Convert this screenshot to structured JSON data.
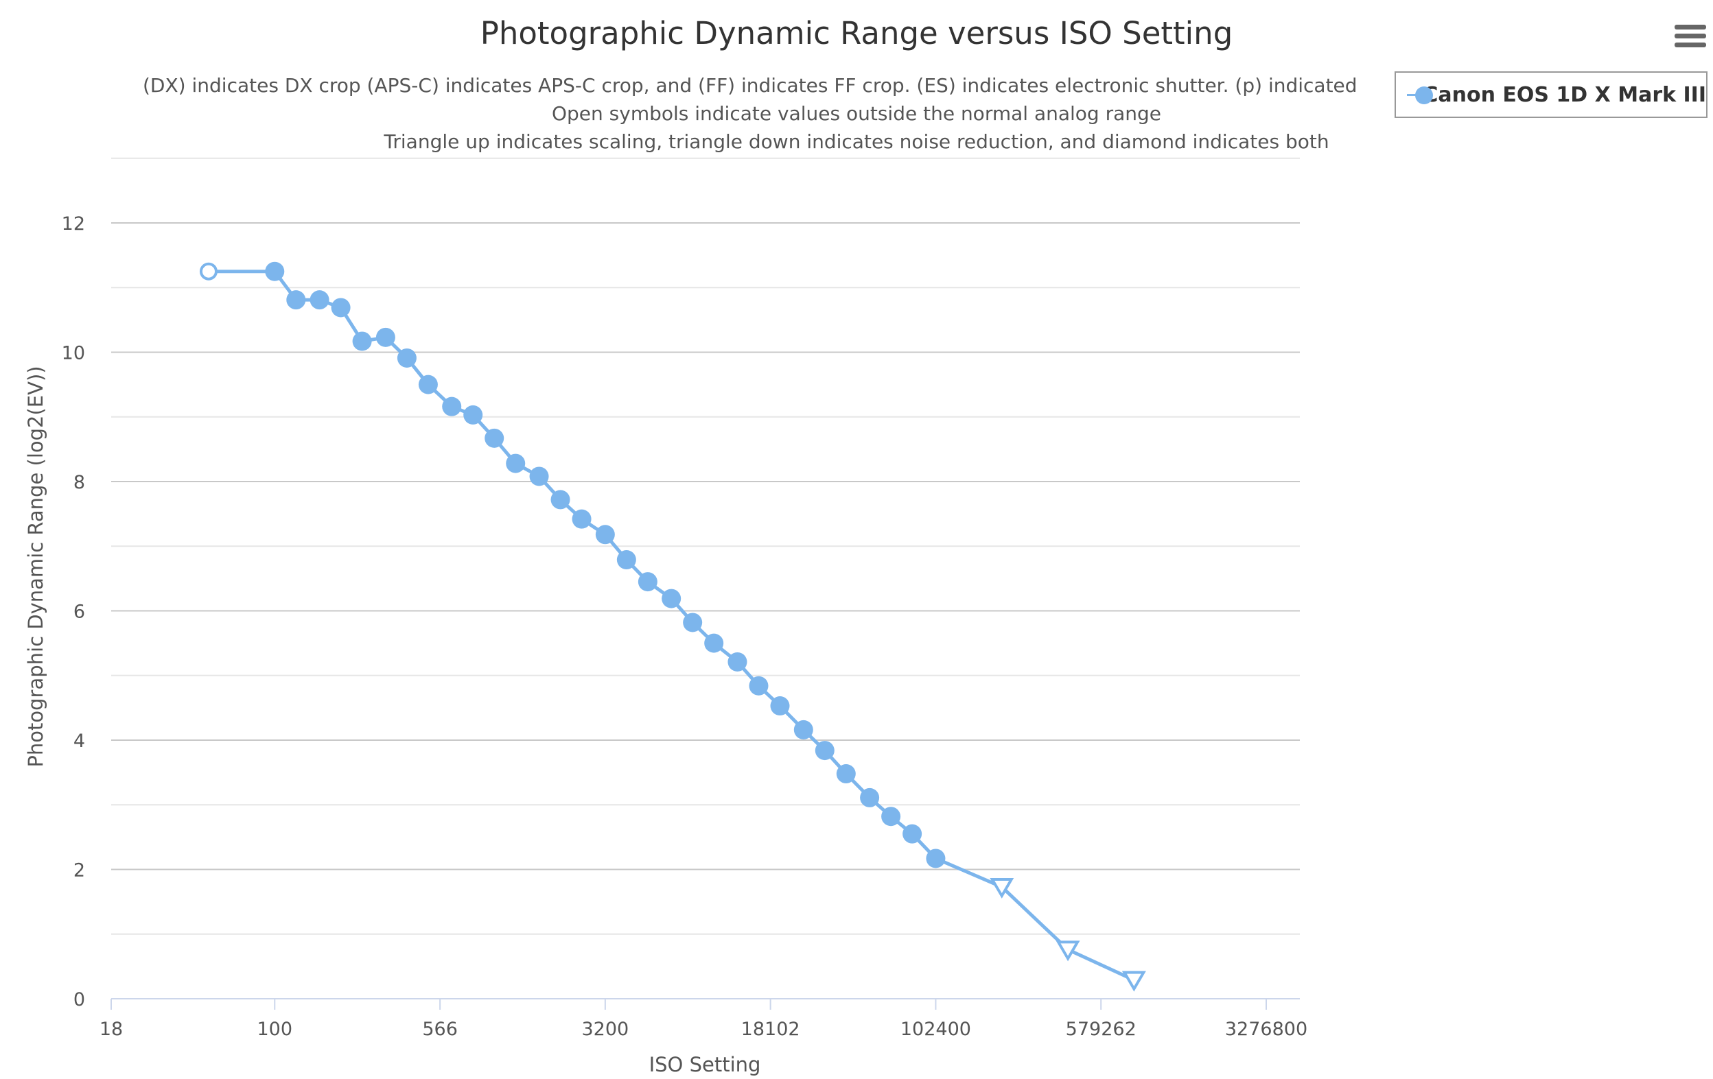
{
  "chart_data": {
    "type": "line",
    "title": "Photographic Dynamic Range versus ISO Setting",
    "subtitles": [
      "(DX) indicates DX crop (APS-C) indicates APS-C crop, and (FF) indicates FF crop. (ES) indicates electronic shutter. (p) indicated",
      "Open symbols indicate values outside the normal analog range",
      "Triangle up indicates scaling, triangle down indicates noise reduction, and diamond indicates both"
    ],
    "xlabel": "ISO Setting",
    "ylabel": "Photographic Dynamic Range (log2(EV))",
    "xscale": "log",
    "xlim": [
      18,
      3276800
    ],
    "ylim": [
      0,
      13
    ],
    "xticks": [
      18,
      100,
      566,
      3200,
      18102,
      102400,
      579262,
      3276800
    ],
    "xtick_labels": [
      "18",
      "100",
      "566",
      "3200",
      "18102",
      "102400",
      "579262",
      "3276800"
    ],
    "yticks": [
      0,
      2,
      4,
      6,
      8,
      10,
      12
    ],
    "ytick_labels": [
      "0",
      "2",
      "4",
      "6",
      "8",
      "10",
      "12"
    ],
    "grid": true,
    "legend_position": "top-right",
    "series": [
      {
        "name": "Canon EOS 1D X Mark III",
        "color": "#7cb5ec",
        "x": [
          50,
          100,
          125,
          160,
          200,
          250,
          320,
          400,
          500,
          640,
          800,
          1000,
          1250,
          1600,
          2000,
          2500,
          3200,
          4000,
          5000,
          6400,
          8000,
          10000,
          12800,
          16000,
          20000,
          25600,
          32000,
          40000,
          51200,
          64000,
          80000,
          102400,
          204800,
          409600,
          819200
        ],
        "y": [
          11.25,
          11.25,
          10.81,
          10.81,
          10.69,
          10.17,
          10.23,
          9.91,
          9.5,
          9.16,
          9.03,
          8.67,
          8.28,
          8.08,
          7.72,
          7.42,
          7.18,
          6.79,
          6.45,
          6.19,
          5.82,
          5.5,
          5.21,
          4.84,
          4.53,
          4.16,
          3.84,
          3.48,
          3.11,
          2.82,
          2.55,
          2.17,
          1.73,
          0.76,
          0.29
        ],
        "markers": [
          "open-circle",
          "circle",
          "circle",
          "circle",
          "circle",
          "circle",
          "circle",
          "circle",
          "circle",
          "circle",
          "circle",
          "circle",
          "circle",
          "circle",
          "circle",
          "circle",
          "circle",
          "circle",
          "circle",
          "circle",
          "circle",
          "circle",
          "circle",
          "circle",
          "circle",
          "circle",
          "circle",
          "circle",
          "circle",
          "circle",
          "circle",
          "circle",
          "open-triangle-down",
          "open-triangle-down",
          "open-triangle-down"
        ]
      }
    ]
  },
  "menu": {
    "icon": "hamburger-icon"
  }
}
